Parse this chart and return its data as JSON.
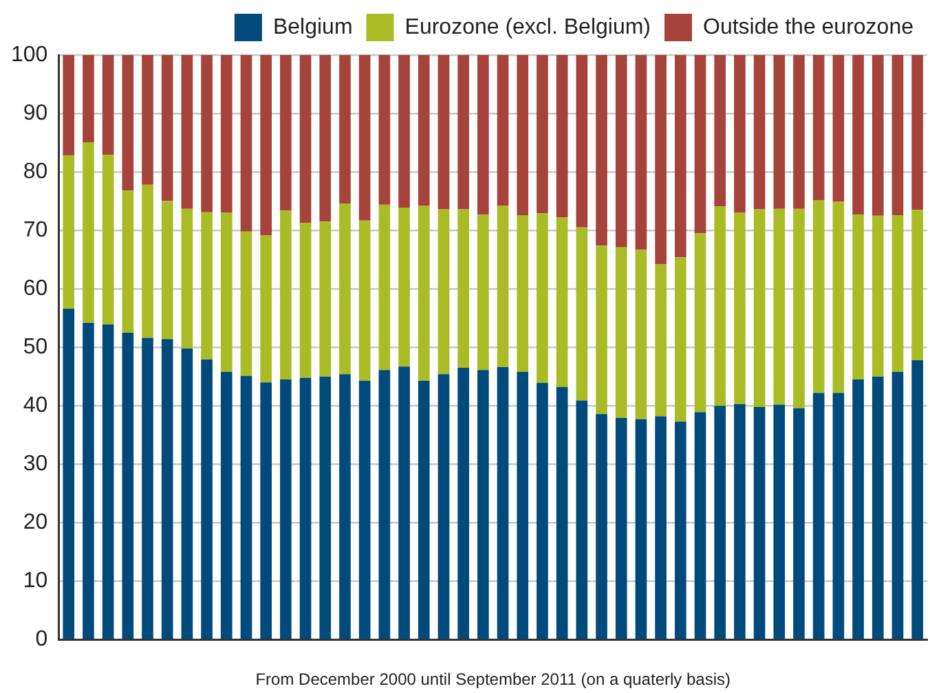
{
  "chart_data": {
    "type": "bar",
    "stacked": true,
    "xlabel": "From December 2000 until September 2011 (on a quaterly basis)",
    "categories": [
      null,
      null,
      null,
      null,
      null,
      null,
      null,
      null,
      null,
      null,
      null,
      null,
      null,
      null,
      null,
      null,
      null,
      null,
      null,
      null,
      null,
      null,
      null,
      null,
      null,
      null,
      null,
      null,
      null,
      null,
      null,
      null,
      null,
      null,
      null,
      null,
      null,
      null,
      null,
      null,
      null,
      null,
      null,
      null
    ],
    "series": [
      {
        "name": "Belgium",
        "color": "#004a7c",
        "values": [
          56.6,
          54.2,
          53.9,
          52.5,
          51.6,
          51.4,
          49.8,
          47.9,
          45.8,
          45.1,
          44.0,
          44.5,
          44.8,
          45.0,
          45.4,
          44.3,
          46.1,
          46.7,
          44.3,
          45.4,
          46.5,
          46.1,
          46.6,
          45.8,
          43.9,
          43.2,
          40.9,
          38.6,
          37.9,
          37.7,
          38.2,
          37.3,
          38.9,
          40.0,
          40.3,
          39.8,
          40.2,
          39.6,
          42.2,
          42.2,
          44.5,
          45.0,
          45.8,
          47.8
        ]
      },
      {
        "name": "Eurozone (excl. Belgium)",
        "color": "#a9bc25",
        "values": [
          26.2,
          30.8,
          29.0,
          24.3,
          26.2,
          23.6,
          23.9,
          25.2,
          27.2,
          24.7,
          25.2,
          28.9,
          26.5,
          26.5,
          29.2,
          27.4,
          28.3,
          27.2,
          29.9,
          28.2,
          27.1,
          26.6,
          27.6,
          26.8,
          29.0,
          29.0,
          29.6,
          28.8,
          29.2,
          29.0,
          26.0,
          28.1,
          30.6,
          34.1,
          32.7,
          33.8,
          33.5,
          34.1,
          33.0,
          32.7,
          28.2,
          27.5,
          26.8,
          25.7
        ]
      },
      {
        "name": "Outside the eurozone",
        "color": "#a6433a",
        "values": [
          17.2,
          15.0,
          17.1,
          23.2,
          22.2,
          25.0,
          26.3,
          26.9,
          27.0,
          30.2,
          30.8,
          26.6,
          28.7,
          28.5,
          25.4,
          28.3,
          25.6,
          26.1,
          25.8,
          26.4,
          26.4,
          27.3,
          25.8,
          27.4,
          27.1,
          27.8,
          29.5,
          32.6,
          32.9,
          33.3,
          35.8,
          34.6,
          30.5,
          25.9,
          27.0,
          26.4,
          26.3,
          26.3,
          24.8,
          25.1,
          27.3,
          27.5,
          27.4,
          26.5
        ]
      }
    ],
    "ylim": [
      0,
      100
    ],
    "yticks": [
      0,
      10,
      20,
      30,
      40,
      50,
      60,
      70,
      80,
      90,
      100
    ],
    "grid": "y",
    "legend": "top"
  }
}
